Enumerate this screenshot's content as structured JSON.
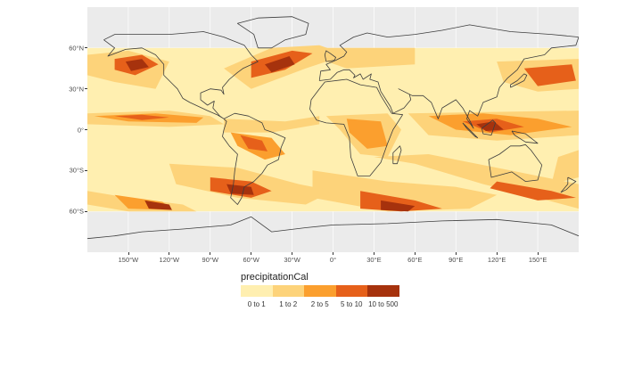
{
  "map": {
    "legend_title": "precipitationCal",
    "x_ticks": [
      "150°W",
      "120°W",
      "90°W",
      "60°W",
      "30°W",
      "0°",
      "30°E",
      "60°E",
      "90°E",
      "120°E",
      "150°E"
    ],
    "y_ticks": [
      "60°N",
      "30°N",
      "0°",
      "30°S",
      "60°S"
    ],
    "x_tick_lons": [
      -150,
      -120,
      -90,
      -60,
      -30,
      0,
      30,
      60,
      90,
      120,
      150
    ],
    "y_tick_lats": [
      60,
      30,
      0,
      -30,
      -60
    ],
    "background_color": "#ebebeb",
    "data_extent": {
      "lon": [
        -180,
        180
      ],
      "lat": [
        -60,
        60
      ]
    },
    "legend": [
      {
        "label": "0 to 1",
        "color": "#ffefb0"
      },
      {
        "label": "1 to 2",
        "color": "#fdd37a"
      },
      {
        "label": "2 to 5",
        "color": "#fb9f2e"
      },
      {
        "label": "5 to 10",
        "color": "#e6601a"
      },
      {
        "label": "10 to 500",
        "color": "#a6320d"
      }
    ]
  },
  "chart_data": {
    "type": "heatmap",
    "title": "",
    "xlabel": "",
    "ylabel": "",
    "xlim": [
      -180,
      180
    ],
    "ylim": [
      -90,
      90
    ],
    "legend_title": "precipitationCal",
    "legend_placement": "bottom",
    "categories": [
      "0 to 1",
      "1 to 2",
      "2 to 5",
      "5 to 10",
      "10 to 500"
    ],
    "grid": true
  }
}
